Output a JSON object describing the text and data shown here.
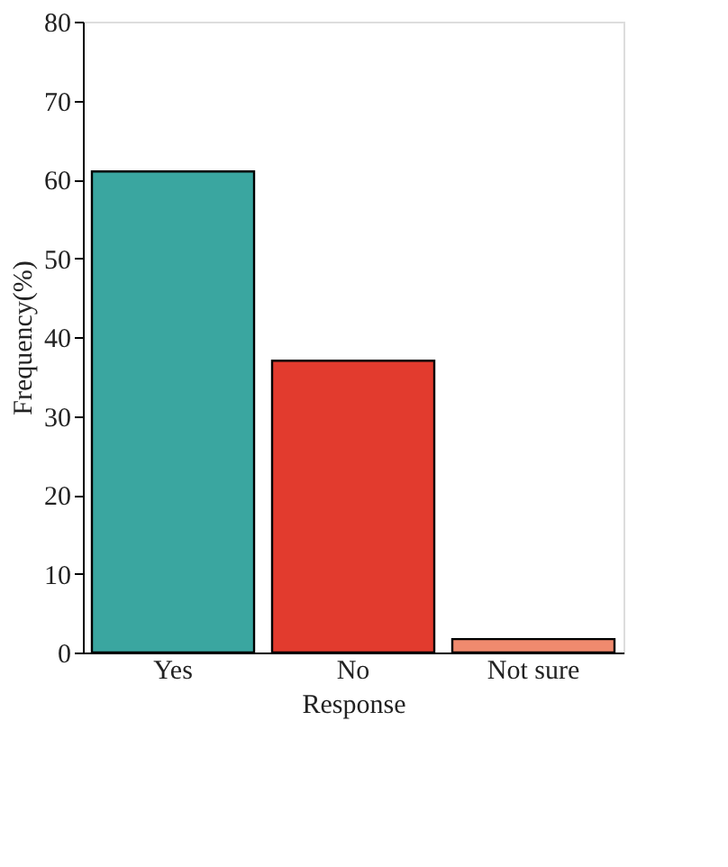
{
  "chart_data": {
    "type": "bar",
    "xlabel": "Response",
    "ylabel": "Frequency(%)",
    "categories": [
      "Yes",
      "No",
      "Not sure"
    ],
    "values": [
      61,
      37,
      1.7
    ],
    "colors": [
      "#3aa6a0",
      "#e23b2e",
      "#f08a6e"
    ],
    "ylim": [
      0,
      80
    ],
    "yticks": [
      0,
      10,
      20,
      30,
      40,
      50,
      60,
      70,
      80
    ],
    "grid": false,
    "legend": false
  }
}
